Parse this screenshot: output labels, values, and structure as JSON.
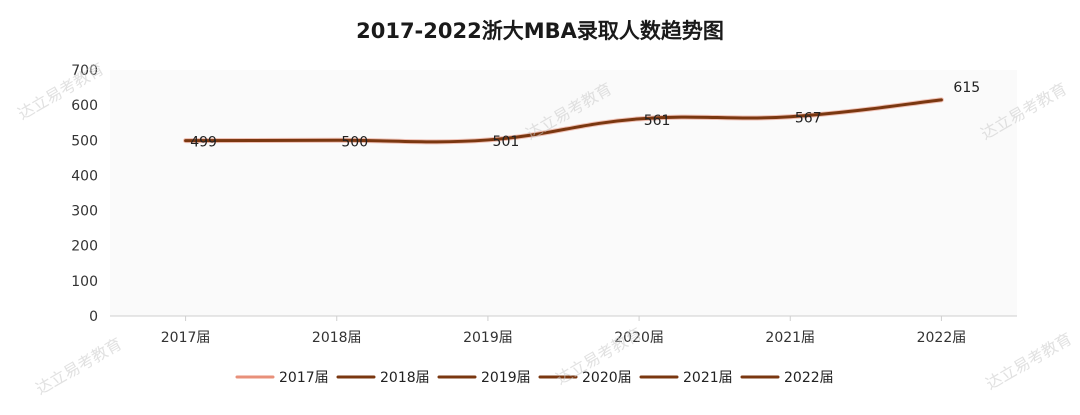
{
  "chart_data": {
    "type": "line",
    "title": "2017-2022浙大MBA录取人数趋势图",
    "categories": [
      "2017届",
      "2018届",
      "2019届",
      "2020届",
      "2021届",
      "2022届"
    ],
    "values": [
      499,
      500,
      501,
      561,
      567,
      615
    ],
    "data_labels": [
      "499",
      "500",
      "501",
      "561",
      "567",
      "615"
    ],
    "ylim": [
      0,
      700
    ],
    "yticks": [
      "0",
      "100",
      "200",
      "300",
      "400",
      "500",
      "600",
      "700"
    ],
    "xlabel": "",
    "ylabel": "",
    "grid": false,
    "smooth": true,
    "legend": {
      "position": "bottom",
      "entries": [
        {
          "label": "2017届",
          "color": "#e8907a"
        },
        {
          "label": "2018届",
          "color": "#7a3710"
        },
        {
          "label": "2019届",
          "color": "#7a3710"
        },
        {
          "label": "2020届",
          "color": "#7a3710"
        },
        {
          "label": "2021届",
          "color": "#7a3710"
        },
        {
          "label": "2022届",
          "color": "#7a3710"
        }
      ]
    },
    "line_color": "#7a3710",
    "line_highlight_color": "#e8907a"
  },
  "watermark": "达立易考教育"
}
